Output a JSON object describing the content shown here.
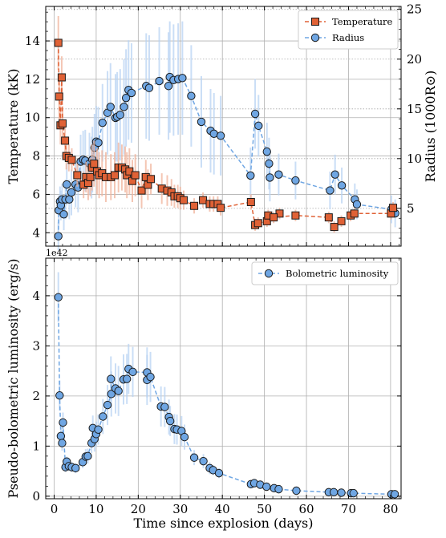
{
  "chart_data": [
    {
      "type": "scatter",
      "panel": "top",
      "xlabel": "",
      "ylabel": "Temperature (kK)",
      "y2label": "Radius (1000R⊙)",
      "xlim": [
        -2,
        82.5
      ],
      "ylim": [
        3.3,
        15.8
      ],
      "y2lim": [
        1.2,
        25.3
      ],
      "x_ticks": [
        0,
        10,
        20,
        30,
        40,
        50,
        60,
        70,
        80
      ],
      "y_ticks": [
        4,
        6,
        8,
        10,
        12,
        14
      ],
      "y2_ticks": [
        5,
        10,
        15,
        20,
        25
      ],
      "grid": true,
      "legend_position": "top-right",
      "series": [
        {
          "name": "Temperature",
          "axis": "left",
          "marker": "square",
          "color": "#e06236",
          "err_color": "#f1b49b",
          "points": [
            [
              1.0,
              13.9,
              1.4
            ],
            [
              1.2,
              11.1,
              1.2
            ],
            [
              1.5,
              9.6,
              1.0
            ],
            [
              1.8,
              12.1,
              1.1
            ],
            [
              2.0,
              9.7,
              0.9
            ],
            [
              2.6,
              8.8,
              0.8
            ],
            [
              2.9,
              8.0,
              0.7
            ],
            [
              3.5,
              7.9,
              0.7
            ],
            [
              4.2,
              7.8,
              0.6
            ],
            [
              5.5,
              7.0,
              0.6
            ],
            [
              7.0,
              6.5,
              0.7
            ],
            [
              7.6,
              6.9,
              0.8
            ],
            [
              8.1,
              6.6,
              0.9
            ],
            [
              8.6,
              6.9,
              1.0
            ],
            [
              9.0,
              7.4,
              1.2
            ],
            [
              9.5,
              7.6,
              1.2
            ],
            [
              10.2,
              7.2,
              1.2
            ],
            [
              10.7,
              7.0,
              1.2
            ],
            [
              11.4,
              7.1,
              1.2
            ],
            [
              12.3,
              6.9,
              1.3
            ],
            [
              13.5,
              6.9,
              1.2
            ],
            [
              14.4,
              7.0,
              1.2
            ],
            [
              15.3,
              7.4,
              1.3
            ],
            [
              16.1,
              7.4,
              1.2
            ],
            [
              16.9,
              7.3,
              1.2
            ],
            [
              17.3,
              7.0,
              1.2
            ],
            [
              17.9,
              7.2,
              1.2
            ],
            [
              18.6,
              6.7,
              1.1
            ],
            [
              19.3,
              7.0,
              1.1
            ],
            [
              20.8,
              6.2,
              0.9
            ],
            [
              21.8,
              6.9,
              0.9
            ],
            [
              22.3,
              6.5,
              0.8
            ],
            [
              23.0,
              6.8,
              0.8
            ],
            [
              25.6,
              6.3,
              0.8
            ],
            [
              26.9,
              6.2,
              0.8
            ],
            [
              27.9,
              6.1,
              0.7
            ],
            [
              28.6,
              5.9,
              0.6
            ],
            [
              29.4,
              5.9,
              0.6
            ],
            [
              30.0,
              5.8,
              0.6
            ],
            [
              30.8,
              5.7,
              0.5
            ],
            [
              33.3,
              5.4,
              0.4
            ],
            [
              35.4,
              5.7,
              0.4
            ],
            [
              37.0,
              5.5,
              0.4
            ],
            [
              37.9,
              5.5,
              0.4
            ],
            [
              38.9,
              5.5,
              0.4
            ],
            [
              39.6,
              5.3,
              0.4
            ],
            [
              46.8,
              5.6,
              0.4
            ],
            [
              47.8,
              4.4,
              0.3
            ],
            [
              48.5,
              4.5,
              0.3
            ],
            [
              50.6,
              4.6,
              0.3
            ],
            [
              50.9,
              4.9,
              0.3
            ],
            [
              53.6,
              5.0,
              0.3
            ],
            [
              52.2,
              4.8,
              0.3
            ],
            [
              57.4,
              4.9,
              0.3
            ],
            [
              65.3,
              4.8,
              0.3
            ],
            [
              66.6,
              4.3,
              0.3
            ],
            [
              68.3,
              4.6,
              0.3
            ],
            [
              70.5,
              4.9,
              0.3
            ],
            [
              71.4,
              5.0,
              0.3
            ],
            [
              80.1,
              5.0,
              0.3
            ],
            [
              80.6,
              5.3,
              0.3
            ]
          ]
        },
        {
          "name": "Radius",
          "axis": "right",
          "marker": "circle",
          "color": "#6fa6e3",
          "err_color": "#b9d3f3",
          "points": [
            [
              1.0,
              2.2,
              1.4
            ],
            [
              1.1,
              4.8,
              1.5
            ],
            [
              1.4,
              5.7,
              1.5
            ],
            [
              1.6,
              5.3,
              1.5
            ],
            [
              1.9,
              5.9,
              1.6
            ],
            [
              2.3,
              4.4,
              1.6
            ],
            [
              2.7,
              5.9,
              2.0
            ],
            [
              3.0,
              7.4,
              2.1
            ],
            [
              3.6,
              5.9,
              2.0
            ],
            [
              4.1,
              6.6,
              2.3
            ],
            [
              5.1,
              7.4,
              2.3
            ],
            [
              5.7,
              7.1,
              2.5
            ],
            [
              6.3,
              9.7,
              2.7
            ],
            [
              6.9,
              9.9,
              2.9
            ],
            [
              7.4,
              9.8,
              3.1
            ],
            [
              8.4,
              9.5,
              3.1
            ],
            [
              8.9,
              9.1,
              3.1
            ],
            [
              9.1,
              9.9,
              3.3
            ],
            [
              9.6,
              11.1,
              3.4
            ],
            [
              10.0,
              11.7,
              3.6
            ],
            [
              10.5,
              11.6,
              3.6
            ],
            [
              11.5,
              13.6,
              3.9
            ],
            [
              12.7,
              14.6,
              4.2
            ],
            [
              13.4,
              15.2,
              4.4
            ],
            [
              14.6,
              14.1,
              4.4
            ],
            [
              15.0,
              14.2,
              4.5
            ],
            [
              15.7,
              14.4,
              4.6
            ],
            [
              16.6,
              15.2,
              4.8
            ],
            [
              17.1,
              16.1,
              4.9
            ],
            [
              17.7,
              16.9,
              5.0
            ],
            [
              18.4,
              16.6,
              5.0
            ],
            [
              21.9,
              17.3,
              5.3
            ],
            [
              22.6,
              17.1,
              5.3
            ],
            [
              25.0,
              17.8,
              5.4
            ],
            [
              27.2,
              17.3,
              5.4
            ],
            [
              27.5,
              18.2,
              5.6
            ],
            [
              28.4,
              17.9,
              5.6
            ],
            [
              29.5,
              18.0,
              5.6
            ],
            [
              30.5,
              18.1,
              5.7
            ],
            [
              32.6,
              16.3,
              5.1
            ],
            [
              35.0,
              13.7,
              4.6
            ],
            [
              37.2,
              12.8,
              4.2
            ],
            [
              38.0,
              12.5,
              4.1
            ],
            [
              39.6,
              12.3,
              4.0
            ],
            [
              46.7,
              8.3,
              2.8
            ],
            [
              47.8,
              14.5,
              3.5
            ],
            [
              48.6,
              13.3,
              3.1
            ],
            [
              50.6,
              10.7,
              2.9
            ],
            [
              51.1,
              9.5,
              2.6
            ],
            [
              51.3,
              8.1,
              2.4
            ],
            [
              53.4,
              8.4,
              2.1
            ],
            [
              57.4,
              7.8,
              1.9
            ],
            [
              65.6,
              6.8,
              1.9
            ],
            [
              66.8,
              8.4,
              2.0
            ],
            [
              68.4,
              7.3,
              1.8
            ],
            [
              71.5,
              5.9,
              1.6
            ],
            [
              72.0,
              5.4,
              1.5
            ],
            [
              80.2,
              4.9,
              1.4
            ],
            [
              81.1,
              4.5,
              1.4
            ]
          ]
        }
      ]
    },
    {
      "type": "scatter",
      "panel": "bottom",
      "xlabel": "Time since explosion (days)",
      "ylabel": "Pseudo-bolometric luminosity (erg/s)",
      "y_offset_label": "1e42",
      "xlim": [
        -2,
        82.5
      ],
      "ylim": [
        -0.05,
        4.75
      ],
      "x_ticks": [
        0,
        10,
        20,
        30,
        40,
        50,
        60,
        70,
        80
      ],
      "y_ticks": [
        0,
        1,
        2,
        3,
        4
      ],
      "grid": true,
      "legend_position": "top-right",
      "series": [
        {
          "name": "Bolometric luminosity",
          "marker": "circle",
          "color": "#6fa6e3",
          "err_color": "#b9d3f3",
          "points": [
            [
              1.0,
              3.97,
              0.5
            ],
            [
              1.3,
              2.01,
              0.3
            ],
            [
              1.6,
              1.2,
              0.2
            ],
            [
              1.9,
              1.06,
              0.15
            ],
            [
              2.1,
              1.47,
              0.2
            ],
            [
              2.7,
              0.58,
              0.1
            ],
            [
              3.0,
              0.69,
              0.1
            ],
            [
              3.5,
              0.6,
              0.1
            ],
            [
              4.2,
              0.58,
              0.1
            ],
            [
              5.1,
              0.56,
              0.1
            ],
            [
              6.8,
              0.68,
              0.12
            ],
            [
              7.5,
              0.79,
              0.15
            ],
            [
              8.0,
              0.8,
              0.15
            ],
            [
              8.9,
              1.06,
              0.2
            ],
            [
              9.2,
              1.36,
              0.25
            ],
            [
              9.6,
              1.14,
              0.25
            ],
            [
              10.0,
              1.24,
              0.25
            ],
            [
              10.5,
              1.33,
              0.3
            ],
            [
              11.6,
              1.59,
              0.35
            ],
            [
              12.7,
              1.82,
              0.4
            ],
            [
              13.6,
              2.04,
              0.45
            ],
            [
              13.5,
              2.34,
              0.45
            ],
            [
              14.6,
              2.15,
              0.5
            ],
            [
              15.3,
              2.1,
              0.5
            ],
            [
              16.5,
              2.33,
              0.5
            ],
            [
              17.3,
              2.34,
              0.5
            ],
            [
              17.7,
              2.54,
              0.5
            ],
            [
              18.7,
              2.48,
              0.5
            ],
            [
              22.1,
              2.47,
              0.5
            ],
            [
              22.1,
              2.32,
              0.5
            ],
            [
              22.9,
              2.38,
              0.5
            ],
            [
              25.4,
              1.79,
              0.4
            ],
            [
              26.3,
              1.78,
              0.4
            ],
            [
              27.3,
              1.58,
              0.35
            ],
            [
              27.6,
              1.5,
              0.3
            ],
            [
              28.6,
              1.34,
              0.3
            ],
            [
              29.2,
              1.33,
              0.3
            ],
            [
              30.3,
              1.3,
              0.3
            ],
            [
              31.0,
              1.18,
              0.25
            ],
            [
              33.3,
              0.77,
              0.15
            ],
            [
              35.5,
              0.7,
              0.14
            ],
            [
              37.0,
              0.56,
              0.12
            ],
            [
              37.8,
              0.52,
              0.1
            ],
            [
              39.2,
              0.46,
              0.1
            ],
            [
              46.8,
              0.24,
              0.06
            ],
            [
              47.6,
              0.26,
              0.06
            ],
            [
              49.0,
              0.23,
              0.05
            ],
            [
              50.5,
              0.19,
              0.05
            ],
            [
              52.3,
              0.16,
              0.04
            ],
            [
              53.4,
              0.14,
              0.04
            ],
            [
              57.6,
              0.11,
              0.03
            ],
            [
              65.3,
              0.08,
              0.03
            ],
            [
              66.5,
              0.08,
              0.03
            ],
            [
              68.3,
              0.07,
              0.02
            ],
            [
              70.6,
              0.06,
              0.02
            ],
            [
              71.2,
              0.06,
              0.02
            ],
            [
              80.2,
              0.04,
              0.02
            ],
            [
              81.0,
              0.04,
              0.02
            ]
          ]
        }
      ]
    }
  ]
}
